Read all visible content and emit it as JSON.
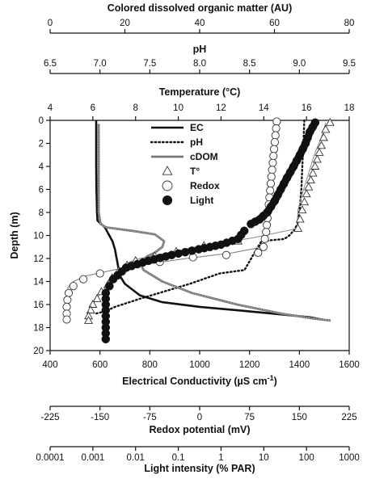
{
  "chart_data": {
    "type": "line",
    "ylabel": "Depth (m)",
    "ylim": [
      0,
      20
    ],
    "y_ticks": [
      0,
      2,
      4,
      6,
      8,
      10,
      12,
      14,
      16,
      18,
      20
    ],
    "y_inverted": true,
    "grid": false,
    "legend_position": "top-center",
    "axes": {
      "cdom": {
        "title": "Colored dissolved organic matter (AU)",
        "range": [
          0,
          80
        ],
        "ticks": [
          0,
          20,
          40,
          60,
          80
        ],
        "position": "top"
      },
      "ph": {
        "title": "pH",
        "range": [
          6.5,
          9.5
        ],
        "ticks": [
          "6.5",
          "7.0",
          "7.5",
          "8.0",
          "8.5",
          "9.0",
          "9.5"
        ],
        "position": "top"
      },
      "temp": {
        "title": "Temperature (°C)",
        "range": [
          4,
          18
        ],
        "ticks": [
          4,
          6,
          8,
          10,
          12,
          14,
          16,
          18
        ],
        "position": "top"
      },
      "ec": {
        "title": "Electrical Conductivity (µS cm⁻¹)",
        "range": [
          400,
          1600
        ],
        "ticks": [
          400,
          600,
          800,
          1000,
          1200,
          1400,
          1600
        ],
        "position": "bottom"
      },
      "redox": {
        "title": "Redox potential (mV)",
        "range": [
          -225,
          225
        ],
        "ticks": [
          "-225",
          "-150",
          "-75",
          "0",
          "75",
          "150",
          "225"
        ],
        "position": "bottom"
      },
      "light": {
        "title": "Light intensity (% PAR)",
        "range": [
          0.0001,
          1000
        ],
        "scale": "log",
        "ticks": [
          "0.0001",
          "0.001",
          "0.01",
          "0.1",
          "1",
          "10",
          "100",
          "1000"
        ],
        "position": "bottom"
      }
    },
    "series": [
      {
        "name": "EC",
        "axis": "ec",
        "style": "solid-black",
        "color": "#111111",
        "x": [
          585,
          585,
          585,
          586,
          587,
          588,
          590,
          620,
          650,
          660,
          680,
          700,
          760,
          850,
          1000,
          1150,
          1300,
          1440,
          1490
        ],
        "y": [
          0,
          2,
          4,
          6,
          7,
          8,
          8.7,
          9.3,
          10.5,
          11.2,
          13.5,
          14.2,
          15.2,
          15.8,
          16.2,
          16.5,
          16.8,
          17.1,
          17.3
        ]
      },
      {
        "name": "pH",
        "axis": "ph",
        "style": "dotted-black",
        "color": "#111111",
        "x": [
          9.05,
          9.04,
          9.03,
          9.02,
          9.0,
          8.98,
          8.95,
          8.9,
          8.85,
          8.62,
          8.55,
          8.45,
          8.2,
          7.9,
          7.4,
          7.15,
          7.05,
          6.95
        ],
        "y": [
          0,
          2,
          4,
          6,
          8,
          9,
          9.5,
          10.0,
          10.3,
          10.5,
          11.5,
          13.0,
          13.3,
          14.2,
          15.5,
          16.2,
          16.6,
          16.8
        ]
      },
      {
        "name": "cDOM",
        "axis": "cdom",
        "style": "gray",
        "color": "#8a8a8a",
        "x": [
          13,
          13,
          13,
          13,
          13,
          13.5,
          15,
          22,
          28,
          30.5,
          30,
          28,
          26,
          24,
          25,
          30,
          38,
          50,
          62,
          70,
          75
        ],
        "y": [
          0.3,
          2,
          4,
          6,
          8,
          9.0,
          9.3,
          9.6,
          9.9,
          10.5,
          11.0,
          11.5,
          11.8,
          12.3,
          13.0,
          14.0,
          15.0,
          16.0,
          16.8,
          17.2,
          17.4
        ]
      },
      {
        "name": "T°",
        "axis": "temp",
        "marker": "triangle",
        "color": "#111111",
        "x": [
          16.9,
          16.7,
          16.4,
          16.2,
          16.0,
          15.8,
          15.6,
          15.55,
          13.5,
          11.5,
          10.5,
          9.8,
          9.0,
          8.2,
          7.7,
          7.5,
          7.2,
          7.0,
          6.7,
          6.5,
          6.2,
          6.0,
          5.9,
          5.8,
          5.8
        ],
        "y": [
          0.2,
          1.5,
          2.8,
          4.0,
          5.2,
          6.4,
          7.8,
          9.4,
          10.2,
          10.8,
          11.1,
          11.4,
          11.7,
          12.0,
          12.3,
          12.6,
          13.0,
          13.5,
          14.2,
          14.8,
          15.4,
          16.0,
          16.5,
          17.0,
          17.4
        ],
        "markers": [
          [
            17.1,
            0.2
          ],
          [
            16.9,
            0.8
          ],
          [
            16.8,
            1.5
          ],
          [
            16.7,
            2.2
          ],
          [
            16.6,
            2.8
          ],
          [
            16.5,
            3.4
          ],
          [
            16.4,
            4.0
          ],
          [
            16.3,
            4.6
          ],
          [
            16.2,
            5.2
          ],
          [
            16.1,
            5.8
          ],
          [
            16.0,
            6.4
          ],
          [
            15.9,
            7.1
          ],
          [
            15.8,
            7.8
          ],
          [
            15.7,
            8.6
          ],
          [
            15.6,
            9.4
          ],
          [
            12.8,
            10.5
          ],
          [
            11.2,
            10.9
          ],
          [
            9.9,
            11.4
          ],
          [
            8.9,
            11.8
          ],
          [
            8.0,
            12.2
          ],
          [
            7.6,
            12.6
          ],
          [
            7.2,
            13.1
          ],
          [
            6.9,
            13.7
          ],
          [
            6.7,
            14.3
          ],
          [
            6.4,
            14.9
          ],
          [
            6.2,
            15.5
          ],
          [
            6.0,
            16.0
          ],
          [
            5.9,
            16.5
          ],
          [
            5.8,
            17.0
          ],
          [
            5.8,
            17.4
          ]
        ]
      },
      {
        "name": "Redox",
        "axis": "redox",
        "marker": "open-circle",
        "color": "#111111",
        "x": [
          115,
          114,
          112,
          110,
          108,
          106,
          104,
          103,
          102,
          101,
          100,
          95,
          50,
          -20,
          -80,
          -130,
          -170,
          -190,
          -198,
          -200,
          -200,
          -200,
          -200,
          -200,
          -200
        ],
        "y": [
          0.1,
          1.0,
          2.0,
          3.0,
          4.0,
          5.0,
          6.0,
          7.0,
          8.0,
          9.0,
          10.0,
          11.0,
          11.5,
          12.0,
          12.5,
          13.0,
          13.5,
          14.0,
          14.5,
          15.0,
          15.5,
          16.0,
          16.5,
          17.0,
          17.3
        ],
        "markers": [
          [
            116,
            0.1
          ],
          [
            115,
            0.7
          ],
          [
            114,
            1.3
          ],
          [
            113,
            1.9
          ],
          [
            112,
            2.5
          ],
          [
            111,
            3.1
          ],
          [
            110,
            3.7
          ],
          [
            109,
            4.3
          ],
          [
            108,
            4.9
          ],
          [
            107,
            5.5
          ],
          [
            106,
            6.1
          ],
          [
            105,
            6.7
          ],
          [
            104,
            7.3
          ],
          [
            103,
            7.9
          ],
          [
            102,
            8.5
          ],
          [
            101,
            9.1
          ],
          [
            100,
            9.7
          ],
          [
            98,
            10.3
          ],
          [
            96,
            11.0
          ],
          [
            88,
            11.5
          ],
          [
            40,
            11.7
          ],
          [
            -10,
            11.9
          ],
          [
            -60,
            12.3
          ],
          [
            -110,
            12.8
          ],
          [
            -150,
            13.3
          ],
          [
            -175,
            13.8
          ],
          [
            -190,
            14.4
          ],
          [
            -197,
            15.0
          ],
          [
            -199,
            15.6
          ],
          [
            -200,
            16.2
          ],
          [
            -200,
            16.8
          ],
          [
            -200,
            17.3
          ]
        ]
      },
      {
        "name": "Light",
        "axis": "light",
        "marker": "filled-circle",
        "color": "#111111",
        "x": [
          160,
          120,
          95,
          70,
          50,
          35,
          25,
          18,
          12,
          8,
          5,
          3.5,
          2.5,
          1.0,
          0.3,
          0.07,
          0.02,
          0.006,
          0.003,
          0.002,
          0.002,
          0.002,
          0.002
        ],
        "y": [
          0.2,
          1.0,
          2.0,
          3.0,
          4.0,
          5.0,
          6.0,
          7.0,
          8.0,
          8.6,
          9.0,
          9.6,
          10.3,
          10.8,
          11.2,
          11.7,
          12.2,
          12.8,
          13.8,
          15.0,
          16.5,
          18.0,
          19.0
        ]
      }
    ]
  }
}
